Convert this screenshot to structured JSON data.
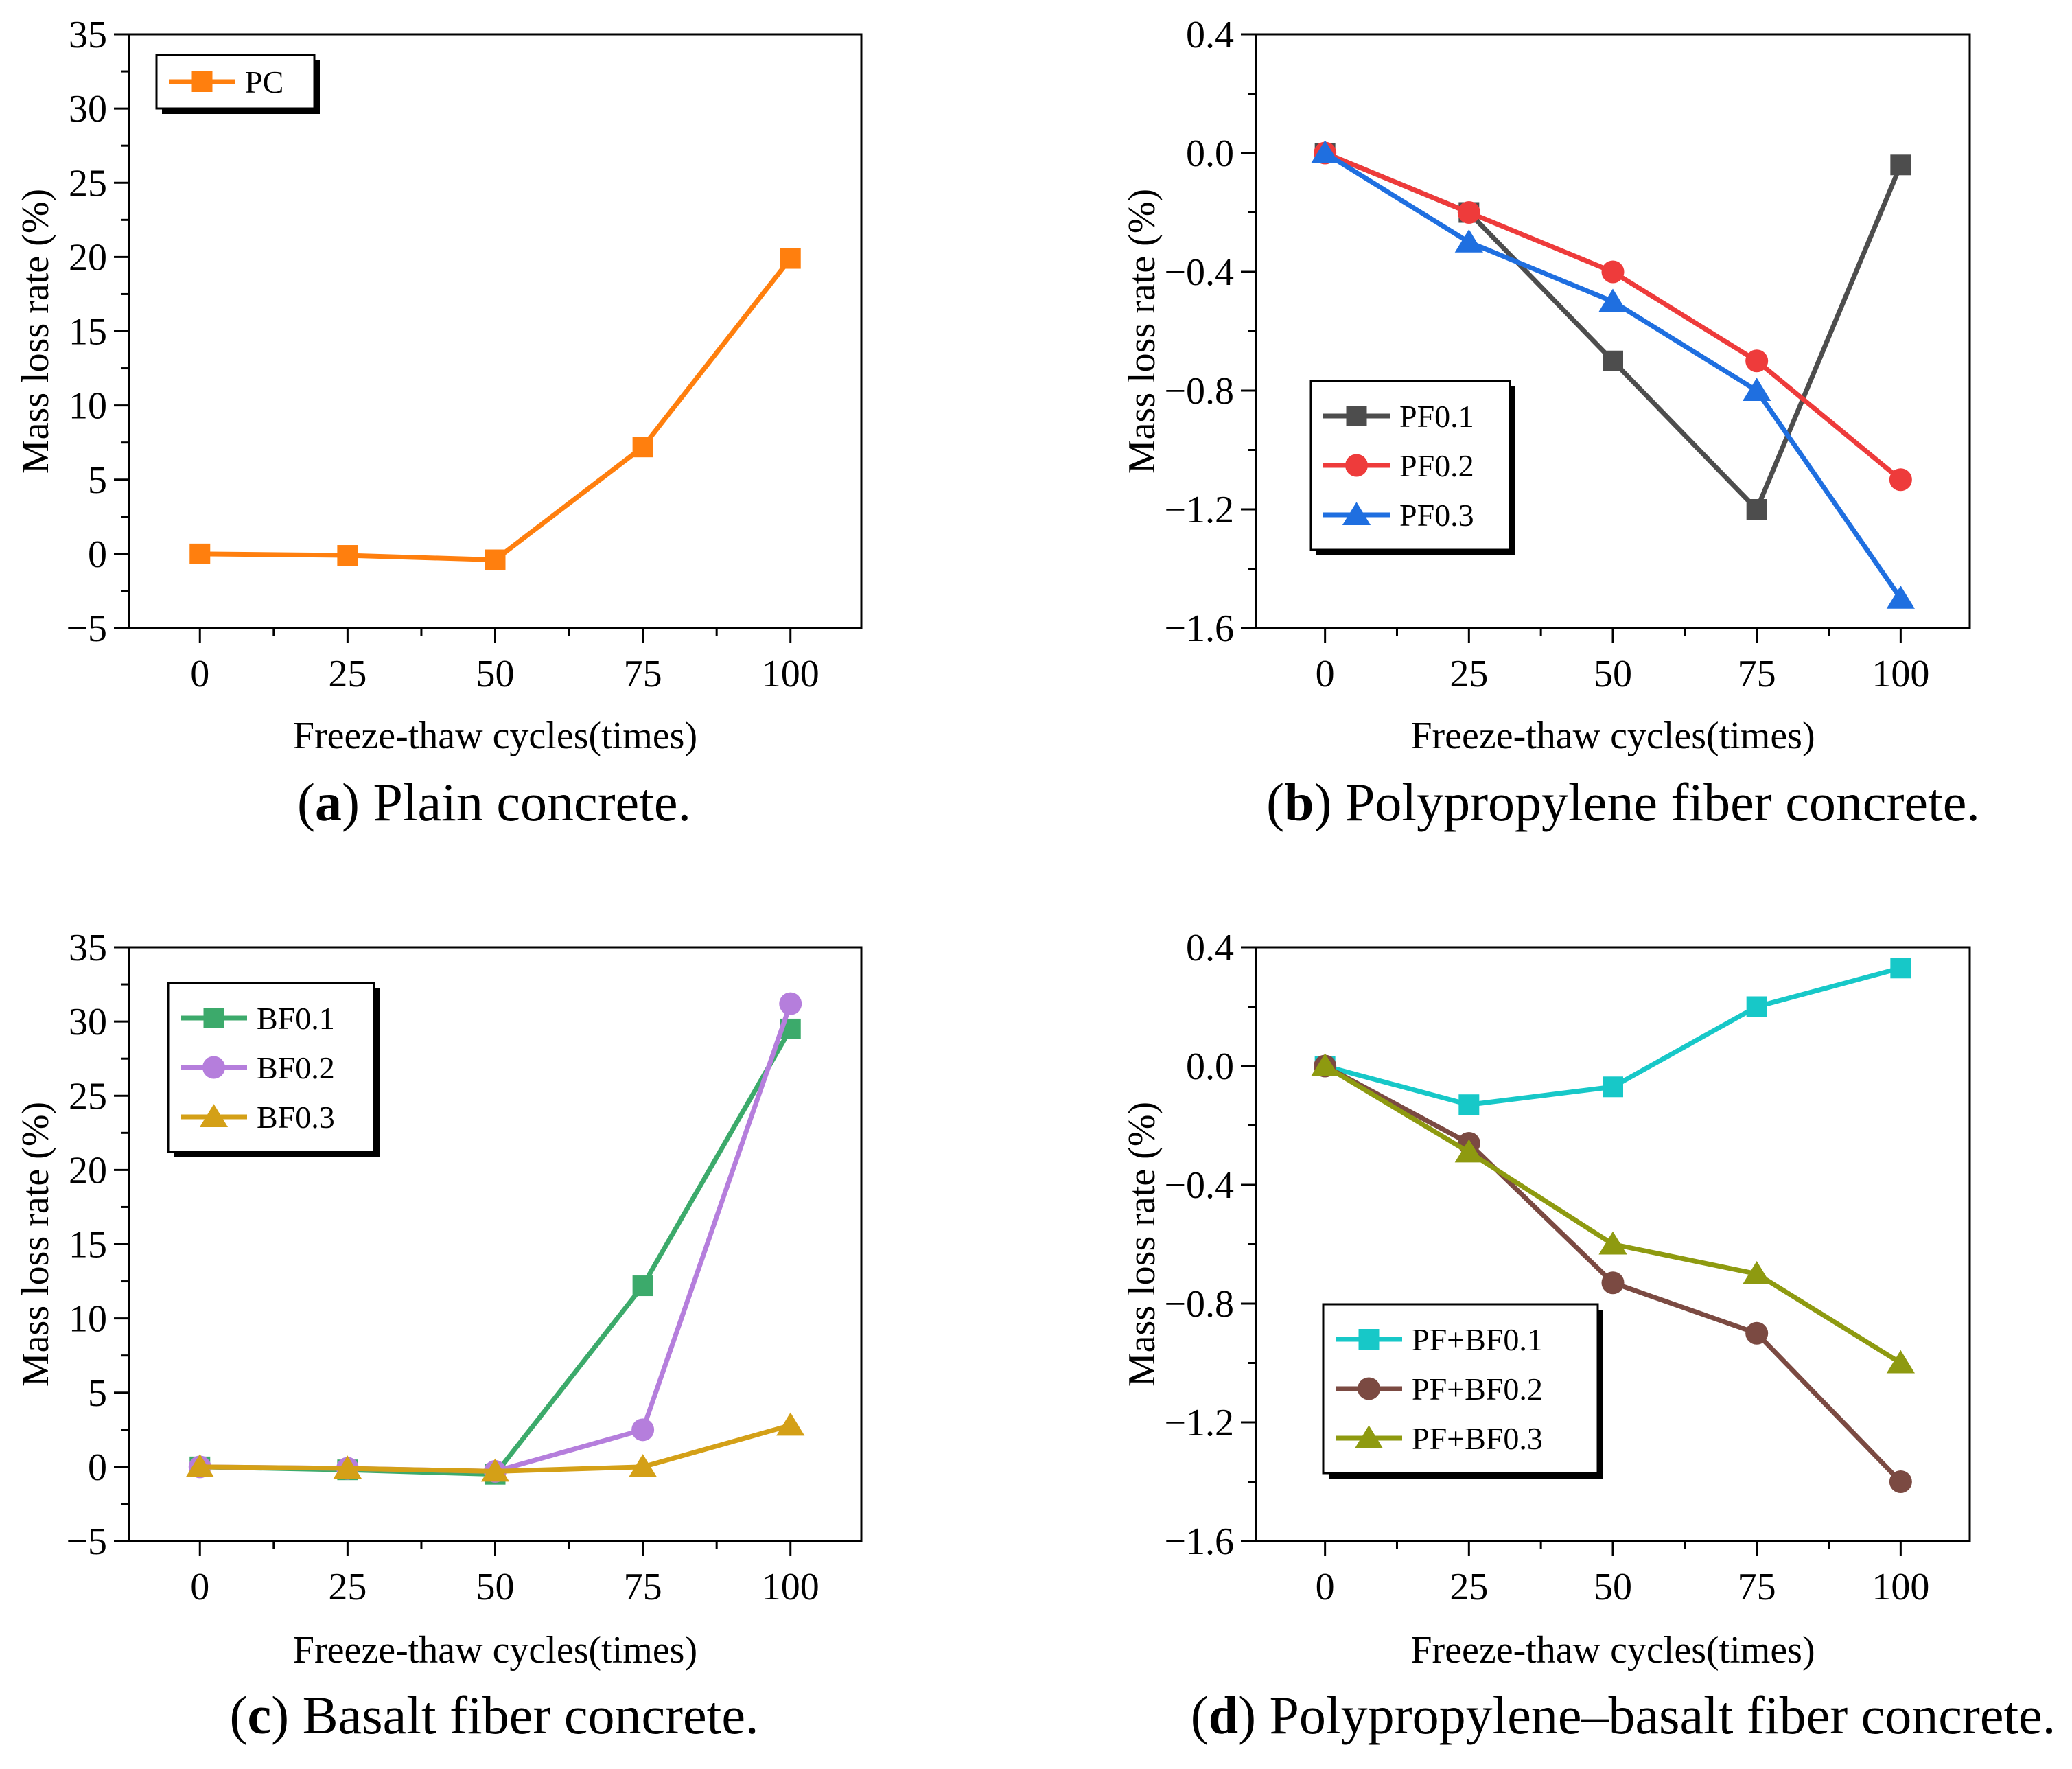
{
  "chart_data": [
    {
      "type": "line",
      "caption_letter": "a",
      "caption_text": "Plain concrete.",
      "xlabel": "Freeze-thaw cycles(times)",
      "ylabel": "Mass loss rate (%)",
      "x": [
        0,
        25,
        50,
        75,
        100
      ],
      "xticks": [
        "0",
        "25",
        "50",
        "75",
        "100"
      ],
      "xlim": [
        -12,
        112
      ],
      "ylim": [
        -5,
        35
      ],
      "yticks": [
        "−5",
        "0",
        "5",
        "10",
        "15",
        "20",
        "25",
        "30",
        "35"
      ],
      "yticks_values": [
        -5,
        0,
        5,
        10,
        15,
        20,
        25,
        30,
        35
      ],
      "legend_position": "top-left",
      "series": [
        {
          "name": "PC",
          "color": "#FF7F0E",
          "marker": "square",
          "values": [
            0,
            -0.1,
            -0.4,
            7.2,
            19.9
          ]
        }
      ]
    },
    {
      "type": "line",
      "caption_letter": "b",
      "caption_text": "Polypropylene fiber concrete.",
      "xlabel": "Freeze-thaw cycles(times)",
      "ylabel": "Mass loss rate (%)",
      "x": [
        0,
        25,
        50,
        75,
        100
      ],
      "xticks": [
        "0",
        "25",
        "50",
        "75",
        "100"
      ],
      "xlim": [
        -12,
        112
      ],
      "ylim": [
        -1.6,
        0.4
      ],
      "yticks": [
        "−1.6",
        "−1.2",
        "−0.8",
        "−0.4",
        "0.0",
        "0.4"
      ],
      "yticks_values": [
        -1.6,
        -1.2,
        -0.8,
        -0.4,
        0.0,
        0.4
      ],
      "legend_position": "lower-left",
      "series": [
        {
          "name": "PF0.1",
          "color": "#4D4D4D",
          "marker": "square",
          "values": [
            0,
            -0.2,
            -0.7,
            -1.2,
            -0.04
          ]
        },
        {
          "name": "PF0.2",
          "color": "#EE3B3B",
          "marker": "circle",
          "values": [
            0,
            -0.2,
            -0.4,
            -0.7,
            -1.1
          ]
        },
        {
          "name": "PF0.3",
          "color": "#1F6FE0",
          "marker": "triangle",
          "values": [
            0,
            -0.3,
            -0.5,
            -0.8,
            -1.5
          ]
        }
      ]
    },
    {
      "type": "line",
      "caption_letter": "c",
      "caption_text": "Basalt fiber concrete.",
      "xlabel": "Freeze-thaw cycles(times)",
      "ylabel": "Mass loss rate (%)",
      "x": [
        0,
        25,
        50,
        75,
        100
      ],
      "xticks": [
        "0",
        "25",
        "50",
        "75",
        "100"
      ],
      "xlim": [
        -12,
        112
      ],
      "ylim": [
        -5,
        35
      ],
      "yticks": [
        "−5",
        "0",
        "5",
        "10",
        "15",
        "20",
        "25",
        "30",
        "35"
      ],
      "yticks_values": [
        -5,
        0,
        5,
        10,
        15,
        20,
        25,
        30,
        35
      ],
      "legend_position": "top-left",
      "series": [
        {
          "name": "BF0.1",
          "color": "#3CAA6B",
          "marker": "square",
          "values": [
            0,
            -0.2,
            -0.5,
            12.2,
            29.5
          ]
        },
        {
          "name": "BF0.2",
          "color": "#B57EDC",
          "marker": "circle",
          "values": [
            0,
            -0.1,
            -0.3,
            2.5,
            31.2
          ]
        },
        {
          "name": "BF0.3",
          "color": "#D4A017",
          "marker": "triangle",
          "values": [
            0,
            -0.1,
            -0.3,
            0,
            2.8
          ]
        }
      ]
    },
    {
      "type": "line",
      "caption_letter": "d",
      "caption_text": "Polypropylene–basalt fiber concrete.",
      "xlabel": "Freeze-thaw cycles(times)",
      "ylabel": "Mass loss rate (%)",
      "x": [
        0,
        25,
        50,
        75,
        100
      ],
      "xticks": [
        "0",
        "25",
        "50",
        "75",
        "100"
      ],
      "xlim": [
        -12,
        112
      ],
      "ylim": [
        -1.6,
        0.4
      ],
      "yticks": [
        "−1.6",
        "−1.2",
        "−0.8",
        "−0.4",
        "0.0",
        "0.4"
      ],
      "yticks_values": [
        -1.6,
        -1.2,
        -0.8,
        -0.4,
        0.0,
        0.4
      ],
      "legend_position": "lower-left",
      "series": [
        {
          "name": "PF+BF0.1",
          "color": "#17C8C8",
          "marker": "square",
          "values": [
            0,
            -0.13,
            -0.07,
            0.2,
            0.33
          ]
        },
        {
          "name": "PF+BF0.2",
          "color": "#7B4A42",
          "marker": "circle",
          "values": [
            0,
            -0.26,
            -0.73,
            -0.9,
            -1.4
          ]
        },
        {
          "name": "PF+BF0.3",
          "color": "#8E9A10",
          "marker": "triangle",
          "values": [
            0,
            -0.29,
            -0.6,
            -0.7,
            -1.0
          ]
        }
      ]
    }
  ]
}
